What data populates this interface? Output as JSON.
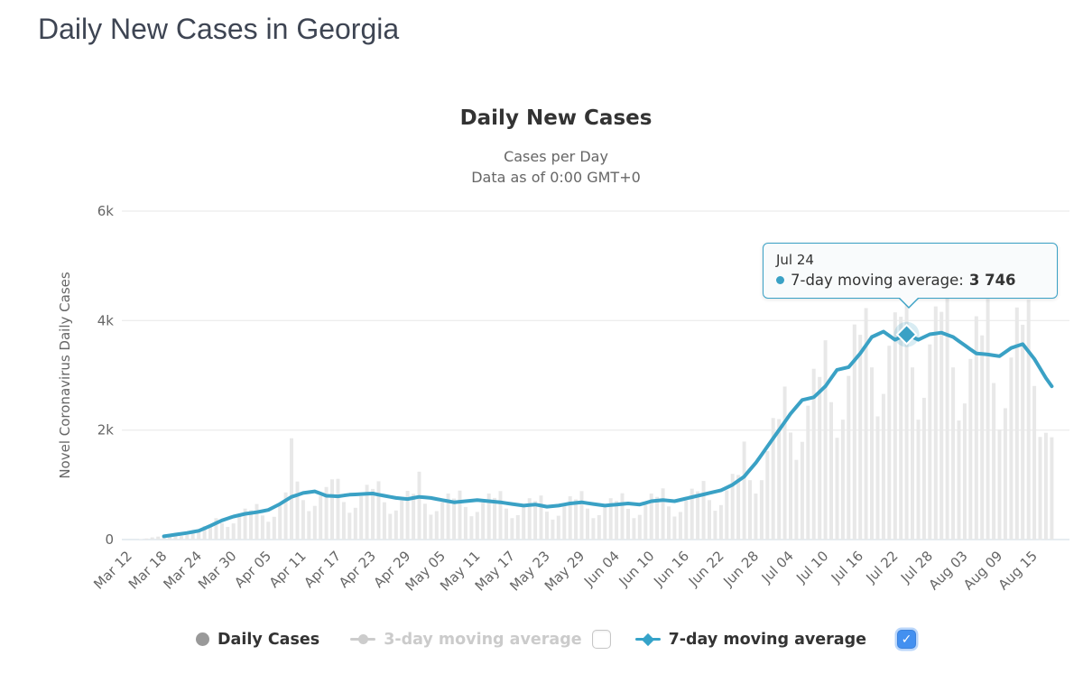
{
  "page": {
    "title": "Daily New Cases in Georgia"
  },
  "chart": {
    "title": "Daily New Cases",
    "subtitle_line1": "Cases per Day",
    "subtitle_line2": "Data as of 0:00 GMT+0",
    "y_axis_title": "Novel Coronavirus Daily Cases"
  },
  "tooltip": {
    "date": "Jul 24",
    "series_label": "7-day moving average:",
    "value": "3 746"
  },
  "legend": {
    "items": [
      {
        "label": "Daily Cases",
        "enabled": true
      },
      {
        "label": "3-day moving average",
        "enabled": false,
        "checkbox": "unchecked"
      },
      {
        "label": "7-day moving average",
        "enabled": true,
        "checkbox": "checked"
      }
    ]
  },
  "icons": {
    "check": "✓"
  },
  "colors": {
    "header_text": "#3e4553",
    "title_text": "#333333",
    "subtitle_text": "#666666",
    "axis_text": "#666666",
    "gridline": "#e7e7e7",
    "baseline": "#cdd9e3",
    "bar": "#e8e8e8",
    "line": "#3aa1c5",
    "tooltip_border": "#3aa1c5",
    "legend_gray_marker": "#999999",
    "legend_disabled_text": "#cbcbcb",
    "checkbox_checked": "#4390f0"
  },
  "chart_data": {
    "type": "combo",
    "title": "Daily New Cases",
    "subtitle": [
      "Cases per Day",
      "Data as of 0:00 GMT+0"
    ],
    "ylabel": "Novel Coronavirus Daily Cases",
    "ylim": [
      0,
      6000
    ],
    "y_ticks": [
      {
        "label": "0",
        "value": 0
      },
      {
        "label": "2k",
        "value": 2000
      },
      {
        "label": "4k",
        "value": 4000
      },
      {
        "label": "6k",
        "value": 6000
      }
    ],
    "grid": "horizontal-only",
    "legend_position": "bottom",
    "start_date": "Mar 12",
    "end_date": "Aug 18",
    "x_tick_every_days": 6,
    "x_tick_labels": [
      "Mar 12",
      "Mar 18",
      "Mar 24",
      "Mar 30",
      "Apr 05",
      "Apr 11",
      "Apr 17",
      "Apr 23",
      "Apr 29",
      "May 05",
      "May 11",
      "May 17",
      "May 23",
      "May 29",
      "Jun 04",
      "Jun 10",
      "Jun 16",
      "Jun 22",
      "Jun 28",
      "Jul 04",
      "Jul 10",
      "Jul 16",
      "Jul 22",
      "Jul 28",
      "Aug 03",
      "Aug 09",
      "Aug 15"
    ],
    "highlight": {
      "index": 134,
      "date": "Jul 24",
      "series": "7-day moving average",
      "value": 3746
    },
    "series": [
      {
        "name": "Daily Cases",
        "type": "bar",
        "visible": true,
        "values": [
          0,
          0,
          10,
          20,
          40,
          55,
          70,
          100,
          75,
          65,
          85,
          135,
          150,
          245,
          275,
          390,
          300,
          230,
          295,
          425,
          565,
          535,
          650,
          440,
          325,
          415,
          620,
          860,
          1850,
          1060,
          720,
          520,
          615,
          800,
          960,
          1100,
          1110,
          685,
          490,
          580,
          790,
          1000,
          925,
          1065,
          680,
          470,
          530,
          715,
          890,
          835,
          1240,
          655,
          455,
          520,
          685,
          840,
          750,
          895,
          595,
          425,
          505,
          675,
          840,
          760,
          885,
          565,
          390,
          445,
          590,
          755,
          705,
          805,
          510,
          365,
          435,
          610,
          790,
          735,
          885,
          565,
          390,
          445,
          590,
          755,
          705,
          845,
          560,
          390,
          450,
          635,
          840,
          780,
          935,
          605,
          420,
          505,
          710,
          930,
          880,
          1070,
          720,
          525,
          630,
          900,
          1200,
          1180,
          1790,
          1085,
          840,
          1085,
          1615,
          2220,
          2200,
          2795,
          1955,
          1455,
          1785,
          2445,
          3120,
          2970,
          3640,
          2510,
          1860,
          2190,
          2990,
          3930,
          3740,
          4230,
          3145,
          2250,
          2660,
          3540,
          4150,
          4070,
          4380,
          3145,
          2190,
          2590,
          3565,
          4260,
          4160,
          4410,
          3145,
          2175,
          2485,
          3300,
          4080,
          3730,
          4395,
          2860,
          2010,
          2400,
          3325,
          4240,
          3925,
          4380,
          2805,
          1875,
          1950,
          1870
        ]
      },
      {
        "name": "3-day moving average",
        "type": "line",
        "visible": false,
        "values": []
      },
      {
        "name": "7-day moving average",
        "type": "line",
        "visible": true,
        "values": [
          null,
          null,
          null,
          null,
          null,
          null,
          60,
          75,
          90,
          105,
          120,
          140,
          160,
          205,
          250,
          300,
          350,
          385,
          420,
          445,
          470,
          485,
          500,
          520,
          540,
          595,
          650,
          715,
          780,
          815,
          850,
          865,
          880,
          840,
          800,
          795,
          790,
          805,
          820,
          825,
          830,
          835,
          840,
          820,
          800,
          780,
          760,
          750,
          740,
          760,
          780,
          770,
          760,
          740,
          720,
          700,
          680,
          690,
          700,
          710,
          720,
          710,
          700,
          690,
          680,
          665,
          650,
          635,
          620,
          630,
          640,
          620,
          600,
          610,
          620,
          640,
          660,
          670,
          680,
          665,
          650,
          635,
          620,
          630,
          640,
          650,
          660,
          650,
          640,
          670,
          700,
          710,
          720,
          710,
          700,
          725,
          750,
          775,
          800,
          825,
          850,
          875,
          900,
          950,
          1000,
          1075,
          1150,
          1275,
          1400,
          1550,
          1700,
          1850,
          2000,
          2150,
          2300,
          2425,
          2550,
          2575,
          2600,
          2700,
          2800,
          2950,
          3100,
          3125,
          3150,
          3275,
          3400,
          3550,
          3700,
          3750,
          3800,
          3725,
          3650,
          3700,
          3746,
          3700,
          3650,
          3700,
          3750,
          3765,
          3780,
          3740,
          3700,
          3625,
          3550,
          3475,
          3400,
          3390,
          3380,
          3365,
          3350,
          3425,
          3500,
          3535,
          3570,
          3435,
          3300,
          3125,
          2950,
          2800
        ]
      }
    ]
  }
}
